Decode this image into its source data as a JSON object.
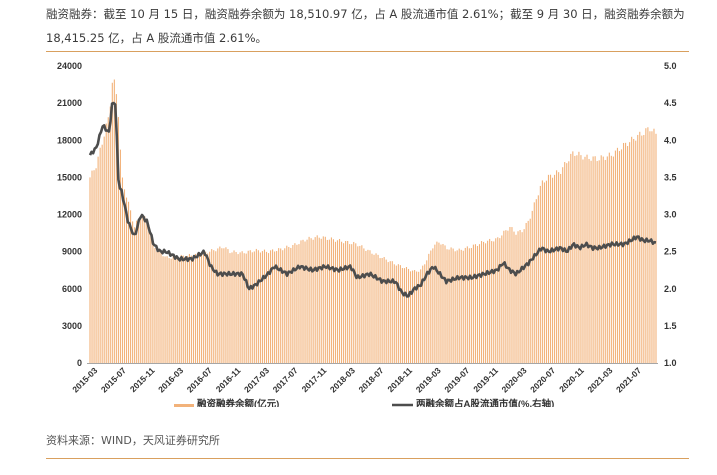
{
  "caption": "融资融券：截至 10 月 15 日，融资融券余额为 18,510.97 亿，占 A 股流通市值 2.61%；截至 9 月 30 日，融资融券余额为 18,415.25 亿，占 A 股流通市值 2.61%。",
  "source": "资料来源：WIND，天风证券研究所",
  "colors": {
    "bars": "#f2b27a",
    "line": "#4d4d4d",
    "rule": "#d9a05e"
  },
  "chart_data": {
    "type": "bar",
    "series": [
      {
        "name": "融资融券余额(亿元)",
        "type": "bar",
        "axis": "left"
      },
      {
        "name": "两融余额占A股流通市值(%,右轴)",
        "type": "line",
        "axis": "right"
      }
    ],
    "y_left": {
      "min": 0,
      "max": 24000,
      "ticks": [
        "0",
        "3000",
        "6000",
        "9000",
        "12000",
        "15000",
        "18000",
        "21000",
        "24000"
      ]
    },
    "y_right": {
      "min": 1.0,
      "max": 5.0,
      "ticks": [
        "1.0",
        "1.5",
        "2.0",
        "2.5",
        "3.0",
        "3.5",
        "4.0",
        "4.5",
        "5.0"
      ]
    },
    "x_ticks": [
      "2015-03",
      "2015-07",
      "2015-11",
      "2016-03",
      "2016-07",
      "2016-11",
      "2017-03",
      "2017-07",
      "2017-11",
      "2018-03",
      "2018-07",
      "2018-11",
      "2019-03",
      "2019-07",
      "2019-11",
      "2020-03",
      "2020-07",
      "2020-11",
      "2021-03",
      "2021-07"
    ],
    "legend_position": "bottom",
    "balance_keypoints": [
      [
        0,
        15000
      ],
      [
        1,
        16000
      ],
      [
        2,
        18000
      ],
      [
        3,
        20000
      ],
      [
        3.5,
        22700
      ],
      [
        4,
        22500
      ],
      [
        4.5,
        20000
      ],
      [
        5,
        15000
      ],
      [
        6,
        13000
      ],
      [
        7,
        11000
      ],
      [
        8,
        12000
      ],
      [
        9,
        11500
      ],
      [
        10,
        9500
      ],
      [
        11,
        9000
      ],
      [
        12,
        8500
      ],
      [
        14,
        8600
      ],
      [
        16,
        8700
      ],
      [
        18,
        8900
      ],
      [
        20,
        9200
      ],
      [
        21,
        9400
      ],
      [
        22,
        9000
      ],
      [
        24,
        8900
      ],
      [
        26,
        9100
      ],
      [
        28,
        9000
      ],
      [
        30,
        9200
      ],
      [
        32,
        9500
      ],
      [
        34,
        10000
      ],
      [
        36,
        10200
      ],
      [
        38,
        10000
      ],
      [
        40,
        9800
      ],
      [
        42,
        9600
      ],
      [
        44,
        9000
      ],
      [
        46,
        8500
      ],
      [
        48,
        8000
      ],
      [
        50,
        7600
      ],
      [
        51,
        7400
      ],
      [
        52,
        7500
      ],
      [
        53,
        8400
      ],
      [
        54,
        9500
      ],
      [
        55,
        9800
      ],
      [
        56,
        9300
      ],
      [
        58,
        9100
      ],
      [
        60,
        9400
      ],
      [
        62,
        9800
      ],
      [
        64,
        10000
      ],
      [
        65,
        10500
      ],
      [
        66,
        11000
      ],
      [
        67,
        10500
      ],
      [
        68,
        10700
      ],
      [
        69,
        11500
      ],
      [
        70,
        13000
      ],
      [
        71,
        14500
      ],
      [
        72,
        15000
      ],
      [
        74,
        15500
      ],
      [
        75,
        16300
      ],
      [
        76,
        17000
      ],
      [
        78,
        16600
      ],
      [
        80,
        16500
      ],
      [
        82,
        16800
      ],
      [
        84,
        17600
      ],
      [
        86,
        18300
      ],
      [
        87,
        18600
      ],
      [
        88,
        19000
      ],
      [
        89,
        18500
      ]
    ],
    "ratio_keypoints": [
      [
        0,
        3.8
      ],
      [
        1,
        3.9
      ],
      [
        2,
        4.2
      ],
      [
        3,
        4.1
      ],
      [
        3.5,
        4.5
      ],
      [
        4,
        4.5
      ],
      [
        4.5,
        3.4
      ],
      [
        5,
        3.3
      ],
      [
        6,
        2.9
      ],
      [
        7,
        2.7
      ],
      [
        8,
        3.0
      ],
      [
        9,
        2.9
      ],
      [
        10,
        2.6
      ],
      [
        11,
        2.5
      ],
      [
        12,
        2.5
      ],
      [
        14,
        2.4
      ],
      [
        16,
        2.4
      ],
      [
        18,
        2.5
      ],
      [
        19,
        2.3
      ],
      [
        20,
        2.2
      ],
      [
        22,
        2.2
      ],
      [
        24,
        2.2
      ],
      [
        25,
        2.0
      ],
      [
        26,
        2.05
      ],
      [
        28,
        2.2
      ],
      [
        29,
        2.3
      ],
      [
        31,
        2.2
      ],
      [
        33,
        2.3
      ],
      [
        35,
        2.25
      ],
      [
        37,
        2.3
      ],
      [
        39,
        2.25
      ],
      [
        41,
        2.3
      ],
      [
        42,
        2.15
      ],
      [
        44,
        2.2
      ],
      [
        46,
        2.1
      ],
      [
        48,
        2.1
      ],
      [
        49,
        1.95
      ],
      [
        50,
        1.9
      ],
      [
        51,
        2.0
      ],
      [
        52,
        2.05
      ],
      [
        53,
        2.2
      ],
      [
        54,
        2.3
      ],
      [
        55,
        2.2
      ],
      [
        56,
        2.1
      ],
      [
        58,
        2.15
      ],
      [
        60,
        2.15
      ],
      [
        62,
        2.2
      ],
      [
        64,
        2.25
      ],
      [
        65,
        2.35
      ],
      [
        66,
        2.25
      ],
      [
        67,
        2.2
      ],
      [
        69,
        2.35
      ],
      [
        70,
        2.45
      ],
      [
        71,
        2.55
      ],
      [
        72,
        2.5
      ],
      [
        74,
        2.55
      ],
      [
        75,
        2.5
      ],
      [
        76,
        2.6
      ],
      [
        77,
        2.55
      ],
      [
        78,
        2.6
      ],
      [
        79,
        2.55
      ],
      [
        80,
        2.55
      ],
      [
        82,
        2.6
      ],
      [
        84,
        2.6
      ],
      [
        86,
        2.7
      ],
      [
        87,
        2.65
      ],
      [
        88,
        2.65
      ],
      [
        89,
        2.61
      ]
    ]
  }
}
